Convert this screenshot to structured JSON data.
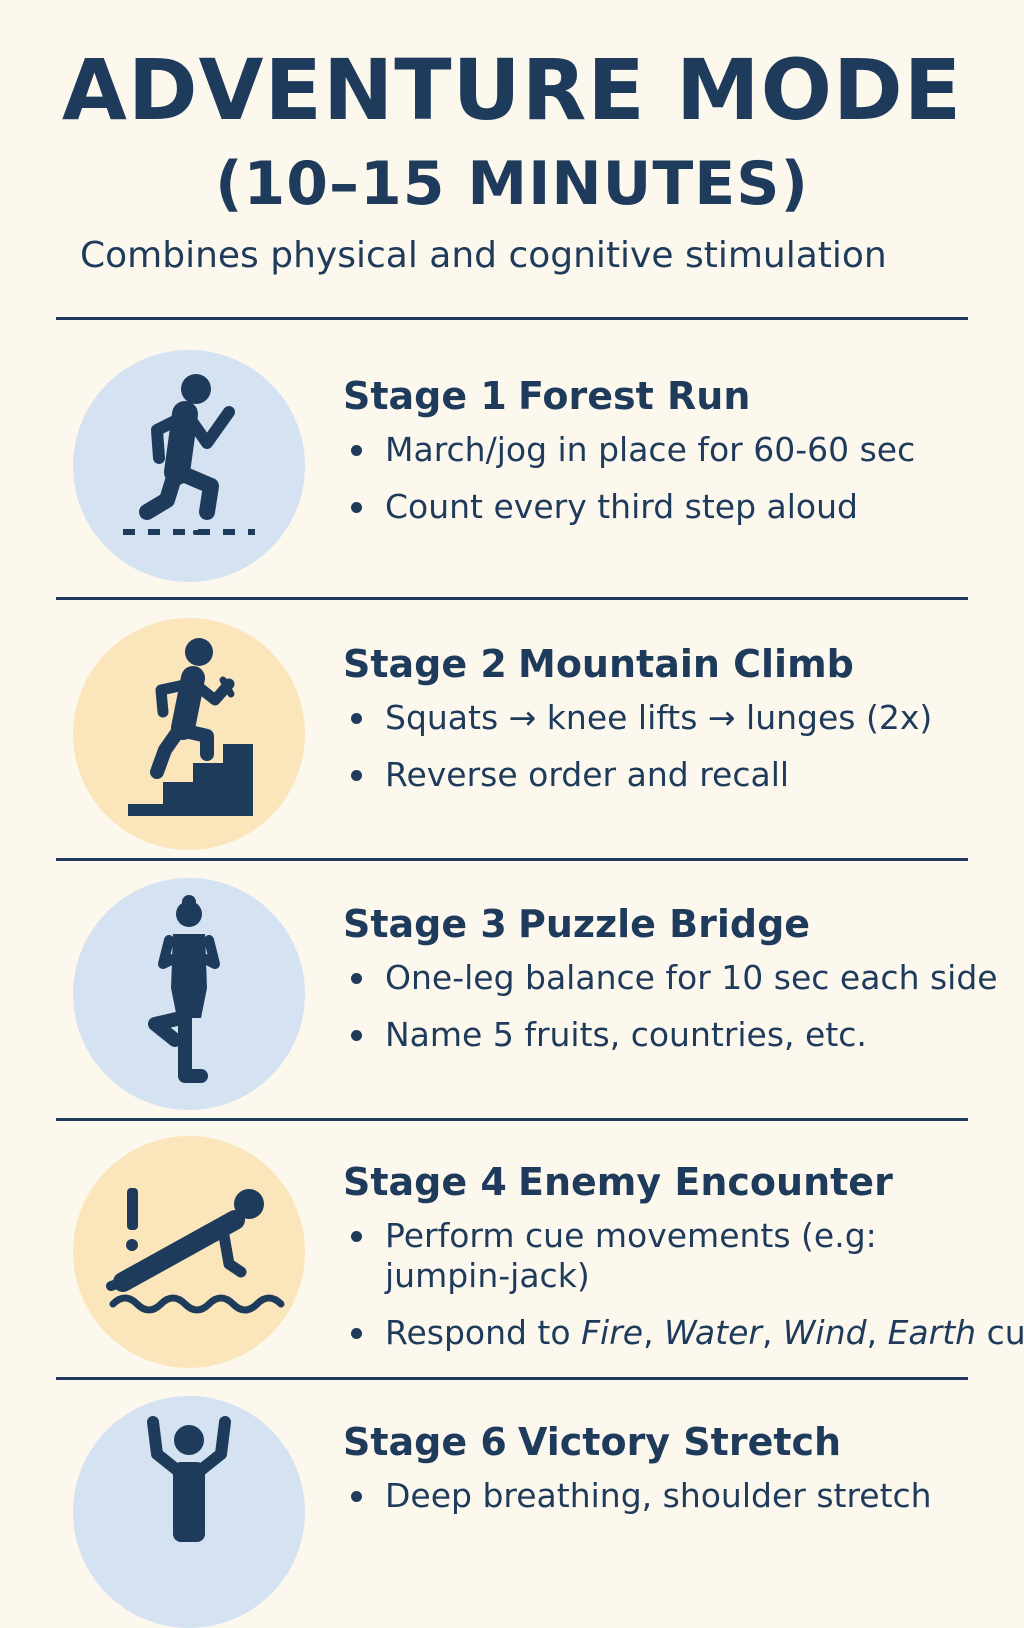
{
  "header": {
    "title": "ADVENTURE MODE",
    "duration": "(10–15 MINUTES)",
    "subtitle": "Combines physical and cognitive stimulation"
  },
  "stages": [
    {
      "number": "Stage 1",
      "name": "Forest Run",
      "icon": "running-person-icon",
      "circle_color": "#d4e2f1",
      "bullets": [
        "March/jog in place for  60-60 sec",
        "Count every third step aloud"
      ]
    },
    {
      "number": "Stage 2",
      "name": "Mountain Climb",
      "icon": "stair-climber-icon",
      "circle_color": "#fbe6bb",
      "bullets": [
        "Squats → knee lifts → lunges  (2x)",
        "Reverse order and recall"
      ]
    },
    {
      "number": "Stage 3",
      "name": "Puzzle Bridge",
      "icon": "tree-pose-balance-icon",
      "circle_color": "#d4e2f1",
      "bullets": [
        "One-leg balance for 10 sec each side",
        "Name 5 fruits, countries, etc."
      ]
    },
    {
      "number": "Stage 4",
      "name": "Enemy Encounter",
      "icon": "plank-alert-icon",
      "circle_color": "#fbe6bb",
      "bullets": [
        "Perform cue movements (e.g: jumpin-jack)"
      ],
      "cue_line": {
        "prefix": "Respond to ",
        "fire": "Fire",
        "sep1": ", ",
        "water": "Water",
        "sep2": ", ",
        "wind": "Wind",
        "sep3": ",  ",
        "earth": "Earth",
        "suffix": " cues"
      }
    },
    {
      "number": "Stage 6",
      "name": "Victory Stretch",
      "icon": "arms-raised-victory-icon",
      "circle_color": "#d4e2f1",
      "bullets": [
        "Deep breathing, shoulder stretch"
      ]
    }
  ]
}
